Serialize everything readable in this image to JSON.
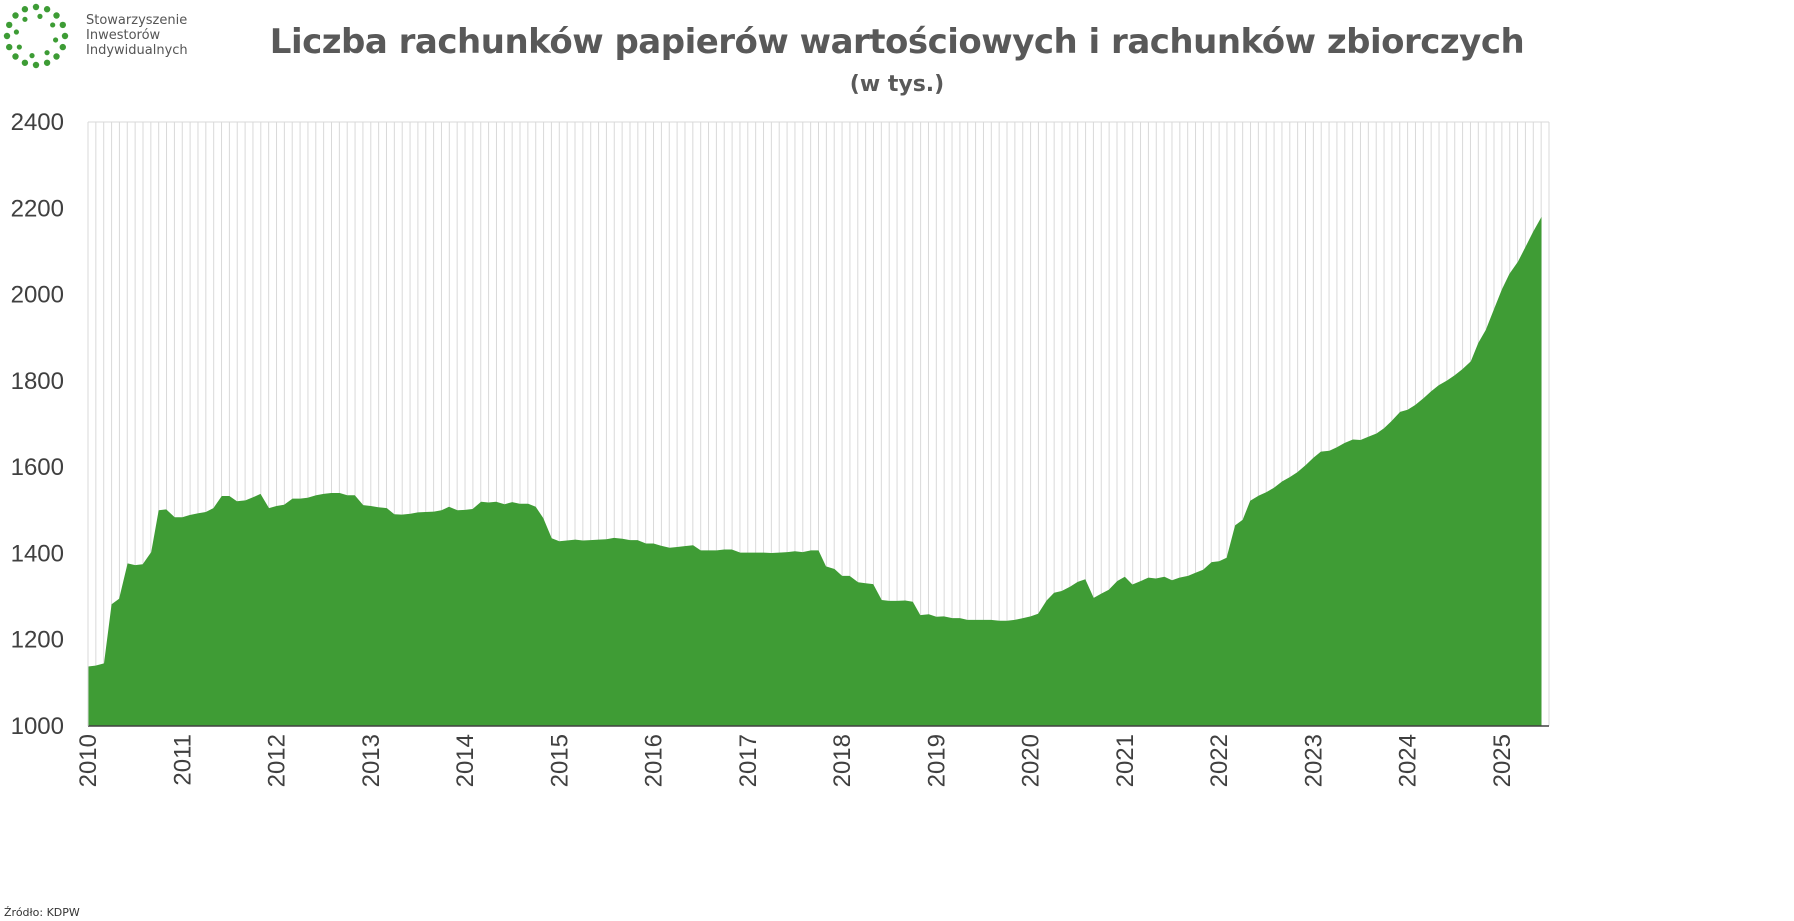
{
  "logo": {
    "lines": [
      "Stowarzyszenie",
      "Inwestorów",
      "Indywidualnych"
    ],
    "color": "#3d9c35"
  },
  "title": "Liczba rachunków papierów wartościowych i rachunków zbiorczych",
  "subtitle": "(w tys.)",
  "source": "Źródło: KDPW",
  "colors": {
    "area": "#3f9c35",
    "grid": "#d9d9d9",
    "axis": "#404040"
  },
  "chart_data": {
    "type": "area",
    "title": "Liczba rachunków papierów wartościowych i rachunków zbiorczych",
    "subtitle": "(w tys.)",
    "xlabel": "",
    "ylabel": "",
    "ylim": [
      1000,
      2400
    ],
    "yticks": [
      1000,
      1200,
      1400,
      1600,
      1800,
      2000,
      2200,
      2400
    ],
    "xlim": [
      2010.0,
      2025.5
    ],
    "xticks": [
      "2010",
      "2011",
      "2012",
      "2013",
      "2014",
      "2015",
      "2016",
      "2017",
      "2018",
      "2019",
      "2020",
      "2021",
      "2022",
      "2023",
      "2024",
      "2025"
    ],
    "grid": "vertical monthly",
    "legend": "none",
    "series": [
      {
        "points": [
          [
            2010.0,
            1138
          ],
          [
            2010.08,
            1140
          ],
          [
            2010.17,
            1145
          ],
          [
            2010.25,
            1282
          ],
          [
            2010.33,
            1295
          ],
          [
            2010.42,
            1377
          ],
          [
            2010.5,
            1373
          ],
          [
            2010.58,
            1375
          ],
          [
            2010.67,
            1403
          ],
          [
            2010.75,
            1500
          ],
          [
            2010.83,
            1502
          ],
          [
            2010.92,
            1484
          ],
          [
            2011.0,
            1484
          ],
          [
            2011.08,
            1489
          ],
          [
            2011.17,
            1493
          ],
          [
            2011.25,
            1496
          ],
          [
            2011.33,
            1505
          ],
          [
            2011.42,
            1533
          ],
          [
            2011.5,
            1533
          ],
          [
            2011.58,
            1521
          ],
          [
            2011.67,
            1523
          ],
          [
            2011.75,
            1530
          ],
          [
            2011.83,
            1538
          ],
          [
            2011.92,
            1505
          ],
          [
            2012.0,
            1510
          ],
          [
            2012.08,
            1513
          ],
          [
            2012.17,
            1527
          ],
          [
            2012.25,
            1527
          ],
          [
            2012.33,
            1529
          ],
          [
            2012.42,
            1535
          ],
          [
            2012.5,
            1538
          ],
          [
            2012.58,
            1540
          ],
          [
            2012.67,
            1540
          ],
          [
            2012.75,
            1535
          ],
          [
            2012.83,
            1535
          ],
          [
            2012.92,
            1512
          ],
          [
            2013.0,
            1510
          ],
          [
            2013.08,
            1507
          ],
          [
            2013.17,
            1505
          ],
          [
            2013.25,
            1491
          ],
          [
            2013.33,
            1490
          ],
          [
            2013.42,
            1492
          ],
          [
            2013.5,
            1495
          ],
          [
            2013.58,
            1496
          ],
          [
            2013.67,
            1497
          ],
          [
            2013.75,
            1500
          ],
          [
            2013.83,
            1508
          ],
          [
            2013.92,
            1500
          ],
          [
            2014.0,
            1501
          ],
          [
            2014.08,
            1503
          ],
          [
            2014.17,
            1520
          ],
          [
            2014.25,
            1518
          ],
          [
            2014.33,
            1520
          ],
          [
            2014.42,
            1514
          ],
          [
            2014.5,
            1519
          ],
          [
            2014.58,
            1515
          ],
          [
            2014.67,
            1515
          ],
          [
            2014.75,
            1508
          ],
          [
            2014.83,
            1482
          ],
          [
            2014.92,
            1435
          ],
          [
            2015.0,
            1428
          ],
          [
            2015.08,
            1430
          ],
          [
            2015.17,
            1432
          ],
          [
            2015.25,
            1430
          ],
          [
            2015.33,
            1431
          ],
          [
            2015.42,
            1432
          ],
          [
            2015.5,
            1433
          ],
          [
            2015.58,
            1436
          ],
          [
            2015.67,
            1434
          ],
          [
            2015.75,
            1431
          ],
          [
            2015.83,
            1431
          ],
          [
            2015.92,
            1423
          ],
          [
            2016.0,
            1423
          ],
          [
            2016.08,
            1418
          ],
          [
            2016.17,
            1413
          ],
          [
            2016.25,
            1415
          ],
          [
            2016.33,
            1417
          ],
          [
            2016.42,
            1419
          ],
          [
            2016.5,
            1407
          ],
          [
            2016.58,
            1407
          ],
          [
            2016.67,
            1407
          ],
          [
            2016.75,
            1409
          ],
          [
            2016.83,
            1409
          ],
          [
            2016.92,
            1402
          ],
          [
            2017.0,
            1402
          ],
          [
            2017.08,
            1402
          ],
          [
            2017.17,
            1402
          ],
          [
            2017.25,
            1401
          ],
          [
            2017.33,
            1402
          ],
          [
            2017.42,
            1403
          ],
          [
            2017.5,
            1405
          ],
          [
            2017.58,
            1403
          ],
          [
            2017.67,
            1407
          ],
          [
            2017.75,
            1407
          ],
          [
            2017.83,
            1370
          ],
          [
            2017.92,
            1364
          ],
          [
            2018.0,
            1348
          ],
          [
            2018.08,
            1348
          ],
          [
            2018.17,
            1333
          ],
          [
            2018.25,
            1331
          ],
          [
            2018.33,
            1329
          ],
          [
            2018.42,
            1292
          ],
          [
            2018.5,
            1290
          ],
          [
            2018.58,
            1290
          ],
          [
            2018.67,
            1291
          ],
          [
            2018.75,
            1288
          ],
          [
            2018.83,
            1257
          ],
          [
            2018.92,
            1259
          ],
          [
            2019.0,
            1253
          ],
          [
            2019.08,
            1254
          ],
          [
            2019.17,
            1250
          ],
          [
            2019.25,
            1250
          ],
          [
            2019.33,
            1246
          ],
          [
            2019.42,
            1246
          ],
          [
            2019.5,
            1246
          ],
          [
            2019.58,
            1246
          ],
          [
            2019.67,
            1244
          ],
          [
            2019.75,
            1244
          ],
          [
            2019.83,
            1246
          ],
          [
            2019.92,
            1250
          ],
          [
            2020.0,
            1254
          ],
          [
            2020.08,
            1260
          ],
          [
            2020.17,
            1291
          ],
          [
            2020.25,
            1309
          ],
          [
            2020.33,
            1313
          ],
          [
            2020.42,
            1323
          ],
          [
            2020.5,
            1334
          ],
          [
            2020.58,
            1340
          ],
          [
            2020.67,
            1297
          ],
          [
            2020.75,
            1307
          ],
          [
            2020.83,
            1316
          ],
          [
            2020.92,
            1336
          ],
          [
            2021.0,
            1346
          ],
          [
            2021.08,
            1328
          ],
          [
            2021.17,
            1336
          ],
          [
            2021.25,
            1344
          ],
          [
            2021.33,
            1342
          ],
          [
            2021.42,
            1346
          ],
          [
            2021.5,
            1338
          ],
          [
            2021.58,
            1344
          ],
          [
            2021.67,
            1348
          ],
          [
            2021.75,
            1355
          ],
          [
            2021.83,
            1362
          ],
          [
            2021.92,
            1380
          ],
          [
            2022.0,
            1382
          ],
          [
            2022.08,
            1390
          ],
          [
            2022.17,
            1465
          ],
          [
            2022.25,
            1478
          ],
          [
            2022.33,
            1522
          ],
          [
            2022.42,
            1534
          ],
          [
            2022.5,
            1542
          ],
          [
            2022.58,
            1552
          ],
          [
            2022.67,
            1567
          ],
          [
            2022.75,
            1577
          ],
          [
            2022.83,
            1588
          ],
          [
            2022.92,
            1605
          ],
          [
            2023.0,
            1622
          ],
          [
            2023.08,
            1636
          ],
          [
            2023.17,
            1638
          ],
          [
            2023.25,
            1646
          ],
          [
            2023.33,
            1656
          ],
          [
            2023.42,
            1664
          ],
          [
            2023.5,
            1663
          ],
          [
            2023.58,
            1670
          ],
          [
            2023.67,
            1678
          ],
          [
            2023.75,
            1690
          ],
          [
            2023.83,
            1707
          ],
          [
            2023.92,
            1728
          ],
          [
            2024.0,
            1733
          ],
          [
            2024.08,
            1744
          ],
          [
            2024.17,
            1760
          ],
          [
            2024.25,
            1776
          ],
          [
            2024.33,
            1790
          ],
          [
            2024.42,
            1801
          ],
          [
            2024.5,
            1813
          ],
          [
            2024.58,
            1827
          ],
          [
            2024.67,
            1845
          ],
          [
            2024.75,
            1888
          ],
          [
            2024.83,
            1918
          ],
          [
            2024.92,
            1968
          ],
          [
            2025.0,
            2012
          ],
          [
            2025.08,
            2048
          ],
          [
            2025.17,
            2076
          ],
          [
            2025.25,
            2110
          ],
          [
            2025.33,
            2145
          ],
          [
            2025.42,
            2180
          ]
        ]
      }
    ]
  }
}
